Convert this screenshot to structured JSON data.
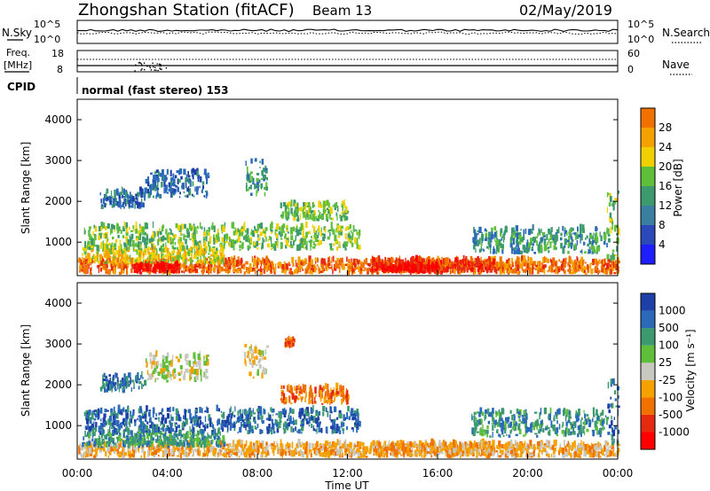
{
  "header": {
    "station": "Zhongshan Station (fitACF)",
    "beam": "Beam 13",
    "date": "02/May/2019",
    "cpid_label": "CPID",
    "cpid_value": "normal (fast stereo) 153"
  },
  "chart_data": [
    {
      "type": "line",
      "name": "noise-panel",
      "left_label": "N.Sky",
      "right_label": "N.Search",
      "left_ticks": [
        "10^5",
        "10^0"
      ],
      "right_ticks": [
        "10^5",
        "10^0"
      ],
      "series": [
        {
          "name": "N.Sky",
          "style": "solid"
        },
        {
          "name": "N.Search",
          "style": "dotted"
        }
      ]
    },
    {
      "type": "line",
      "name": "freq-panel",
      "left_label": "Freq.",
      "left_unit": "[MHz]",
      "right_label": "Nave",
      "left_ticks": [
        18,
        8
      ],
      "right_ticks": [
        60,
        0
      ],
      "series": [
        {
          "name": "Freq.",
          "style": "solid"
        },
        {
          "name": "Nave",
          "style": "dotted"
        }
      ]
    },
    {
      "type": "heatmap",
      "name": "power",
      "ylabel": "Slant Range [km]",
      "yticks": [
        1000,
        2000,
        3000,
        4000
      ],
      "ylim": [
        180,
        4500
      ],
      "xlim": [
        0,
        24
      ],
      "colorbar_label": "Power [dB]",
      "colorbar_ticks": [
        4,
        8,
        12,
        16,
        20,
        24,
        28
      ],
      "colorbar_colors": [
        "#1e1eff",
        "#2b49b8",
        "#3a7fa0",
        "#3d9a6e",
        "#5fbf3a",
        "#f0d000",
        "#f5a200",
        "#f07000",
        "#f03010",
        "#ff0000"
      ],
      "colors": [
        "#1f3fa8",
        "#2a6ab8",
        "#3d9a6e",
        "#5fbf3a",
        "#f0d000",
        "#f5a200",
        "#f07000",
        "#e62a10",
        "#ff0000"
      ],
      "palette_index": [
        0,
        1,
        2,
        3,
        4,
        5,
        6,
        7,
        8
      ],
      "features": [
        {
          "t0": 0.0,
          "t1": 24.0,
          "r0": 200,
          "r1": 520,
          "level": 6
        },
        {
          "t0": 0.2,
          "t1": 6.5,
          "r0": 450,
          "r1": 800,
          "level": 4
        },
        {
          "t0": 0.3,
          "t1": 12.5,
          "r0": 780,
          "r1": 1350,
          "level": 3
        },
        {
          "t0": 3.0,
          "t1": 5.8,
          "r0": 2050,
          "r1": 2700,
          "level": 1
        },
        {
          "t0": 1.0,
          "t1": 3.0,
          "r0": 1800,
          "r1": 2200,
          "level": 1
        },
        {
          "t0": 7.4,
          "t1": 8.4,
          "r0": 2100,
          "r1": 3000,
          "level": 2
        },
        {
          "t0": 9.0,
          "t1": 12.0,
          "r0": 1500,
          "r1": 1900,
          "level": 3
        },
        {
          "t0": 13.0,
          "t1": 18.5,
          "r0": 250,
          "r1": 520,
          "level": 7
        },
        {
          "t0": 17.5,
          "t1": 23.5,
          "r0": 700,
          "r1": 1300,
          "level": 2
        },
        {
          "t0": 23.5,
          "t1": 24.0,
          "r0": 500,
          "r1": 2200,
          "level": 3
        },
        {
          "t0": 2.5,
          "t1": 4.5,
          "r0": 220,
          "r1": 420,
          "level": 8
        },
        {
          "t0": 13.5,
          "t1": 16.0,
          "r0": 220,
          "r1": 380,
          "level": 8
        }
      ]
    },
    {
      "type": "heatmap",
      "name": "velocity",
      "ylabel": "Slant Range [km]",
      "yticks": [
        1000,
        2000,
        3000,
        4000
      ],
      "ylim": [
        180,
        4500
      ],
      "xlim": [
        0,
        24
      ],
      "xticks": [
        "00:00",
        "04:00",
        "08:00",
        "12:00",
        "16:00",
        "20:00",
        "00:00"
      ],
      "xlabel": "Time UT",
      "colorbar_label": "Velocity [m s⁻¹]",
      "colorbar_ticks": [
        1000,
        500,
        100,
        25,
        -25,
        -100,
        -500,
        -1000
      ],
      "colorbar_colors": [
        "#1f3fa8",
        "#2a6ab8",
        "#3d9a6e",
        "#5fbf3a",
        "#c8c8c0",
        "#f5a200",
        "#f07000",
        "#e62a10",
        "#ff0000"
      ],
      "features": [
        {
          "t0": 0.0,
          "t1": 24.0,
          "r0": 200,
          "r1": 520,
          "level": 5
        },
        {
          "t0": 0.2,
          "t1": 6.5,
          "r0": 450,
          "r1": 800,
          "level": 2
        },
        {
          "t0": 0.3,
          "t1": 12.5,
          "r0": 780,
          "r1": 1350,
          "level": 1
        },
        {
          "t0": 3.0,
          "t1": 5.8,
          "r0": 2050,
          "r1": 2700,
          "level": 4
        },
        {
          "t0": 1.0,
          "t1": 3.0,
          "r0": 1800,
          "r1": 2200,
          "level": 1
        },
        {
          "t0": 7.4,
          "t1": 8.4,
          "r0": 2100,
          "r1": 3000,
          "level": 4
        },
        {
          "t0": 9.0,
          "t1": 12.0,
          "r0": 1500,
          "r1": 1900,
          "level": 6
        },
        {
          "t0": 13.0,
          "t1": 18.5,
          "r0": 250,
          "r1": 520,
          "level": 5
        },
        {
          "t0": 17.5,
          "t1": 23.5,
          "r0": 700,
          "r1": 1300,
          "level": 2
        },
        {
          "t0": 23.5,
          "t1": 24.0,
          "r0": 500,
          "r1": 2200,
          "level": 1
        },
        {
          "t0": 9.2,
          "t1": 9.6,
          "r0": 2900,
          "r1": 3050,
          "level": 6
        }
      ]
    }
  ]
}
